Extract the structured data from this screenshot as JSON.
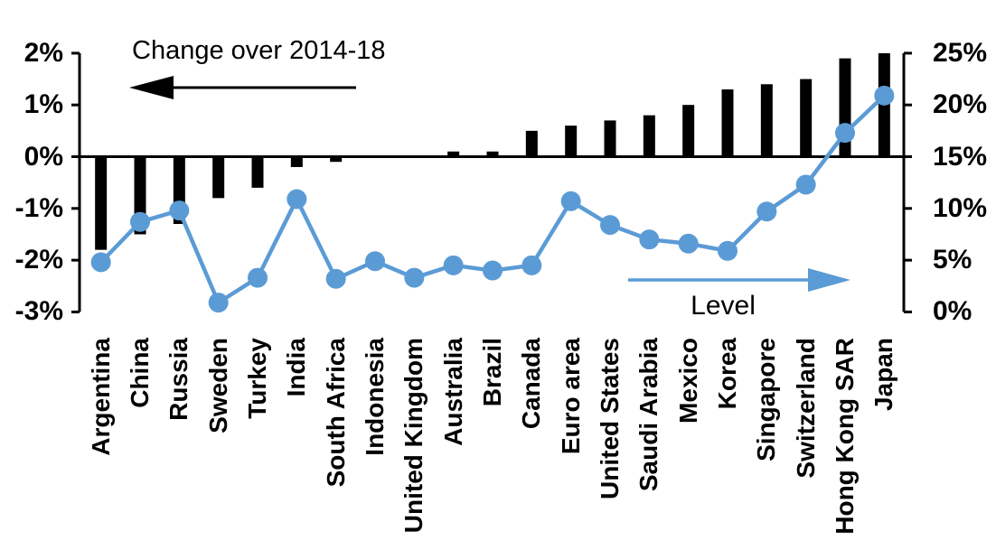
{
  "chart_data": {
    "type": "bar",
    "subtype": "dual-axis bar and line",
    "categories": [
      "Argentina",
      "China",
      "Russia",
      "Sweden",
      "Turkey",
      "India",
      "South Africa",
      "Indonesia",
      "United Kingdom",
      "Australia",
      "Brazil",
      "Canada",
      "Euro area",
      "United States",
      "Saudi Arabia",
      "Mexico",
      "Korea",
      "Singapore",
      "Switzerland",
      "Hong Kong SAR",
      "Japan"
    ],
    "series": [
      {
        "name": "Change over 2014-18",
        "type": "bar",
        "axis": "left",
        "color": "#000000",
        "values": [
          -1.8,
          -1.5,
          -1.3,
          -0.8,
          -0.6,
          -0.2,
          -0.1,
          0.0,
          0.0,
          0.1,
          0.1,
          0.5,
          0.6,
          0.7,
          0.8,
          1.0,
          1.3,
          1.4,
          1.5,
          1.9,
          2.0
        ]
      },
      {
        "name": "Level",
        "type": "line",
        "axis": "right",
        "color": "#5B9BD5",
        "values": [
          4.8,
          8.7,
          9.8,
          0.9,
          3.3,
          10.9,
          3.2,
          4.9,
          3.3,
          4.5,
          4.0,
          4.5,
          10.7,
          8.4,
          7.0,
          6.6,
          5.9,
          9.7,
          12.3,
          17.3,
          20.9
        ]
      }
    ],
    "left_axis": {
      "tick_labels": [
        "2%",
        "1%",
        "0%",
        "-1%",
        "-2%",
        "-3%"
      ],
      "tick_values": [
        2,
        1,
        0,
        -1,
        -2,
        -3
      ],
      "min": -3,
      "max": 2
    },
    "right_axis": {
      "tick_labels": [
        "25%",
        "20%",
        "15%",
        "10%",
        "5%",
        "0%"
      ],
      "tick_values": [
        25,
        20,
        15,
        10,
        5,
        0
      ],
      "min": 0,
      "max": 25
    },
    "annotations": {
      "change_label": "Change over 2014-18",
      "change_arrow_direction": "left",
      "level_label": "Level",
      "level_arrow_direction": "right"
    },
    "grid": "off",
    "legend": "none"
  }
}
